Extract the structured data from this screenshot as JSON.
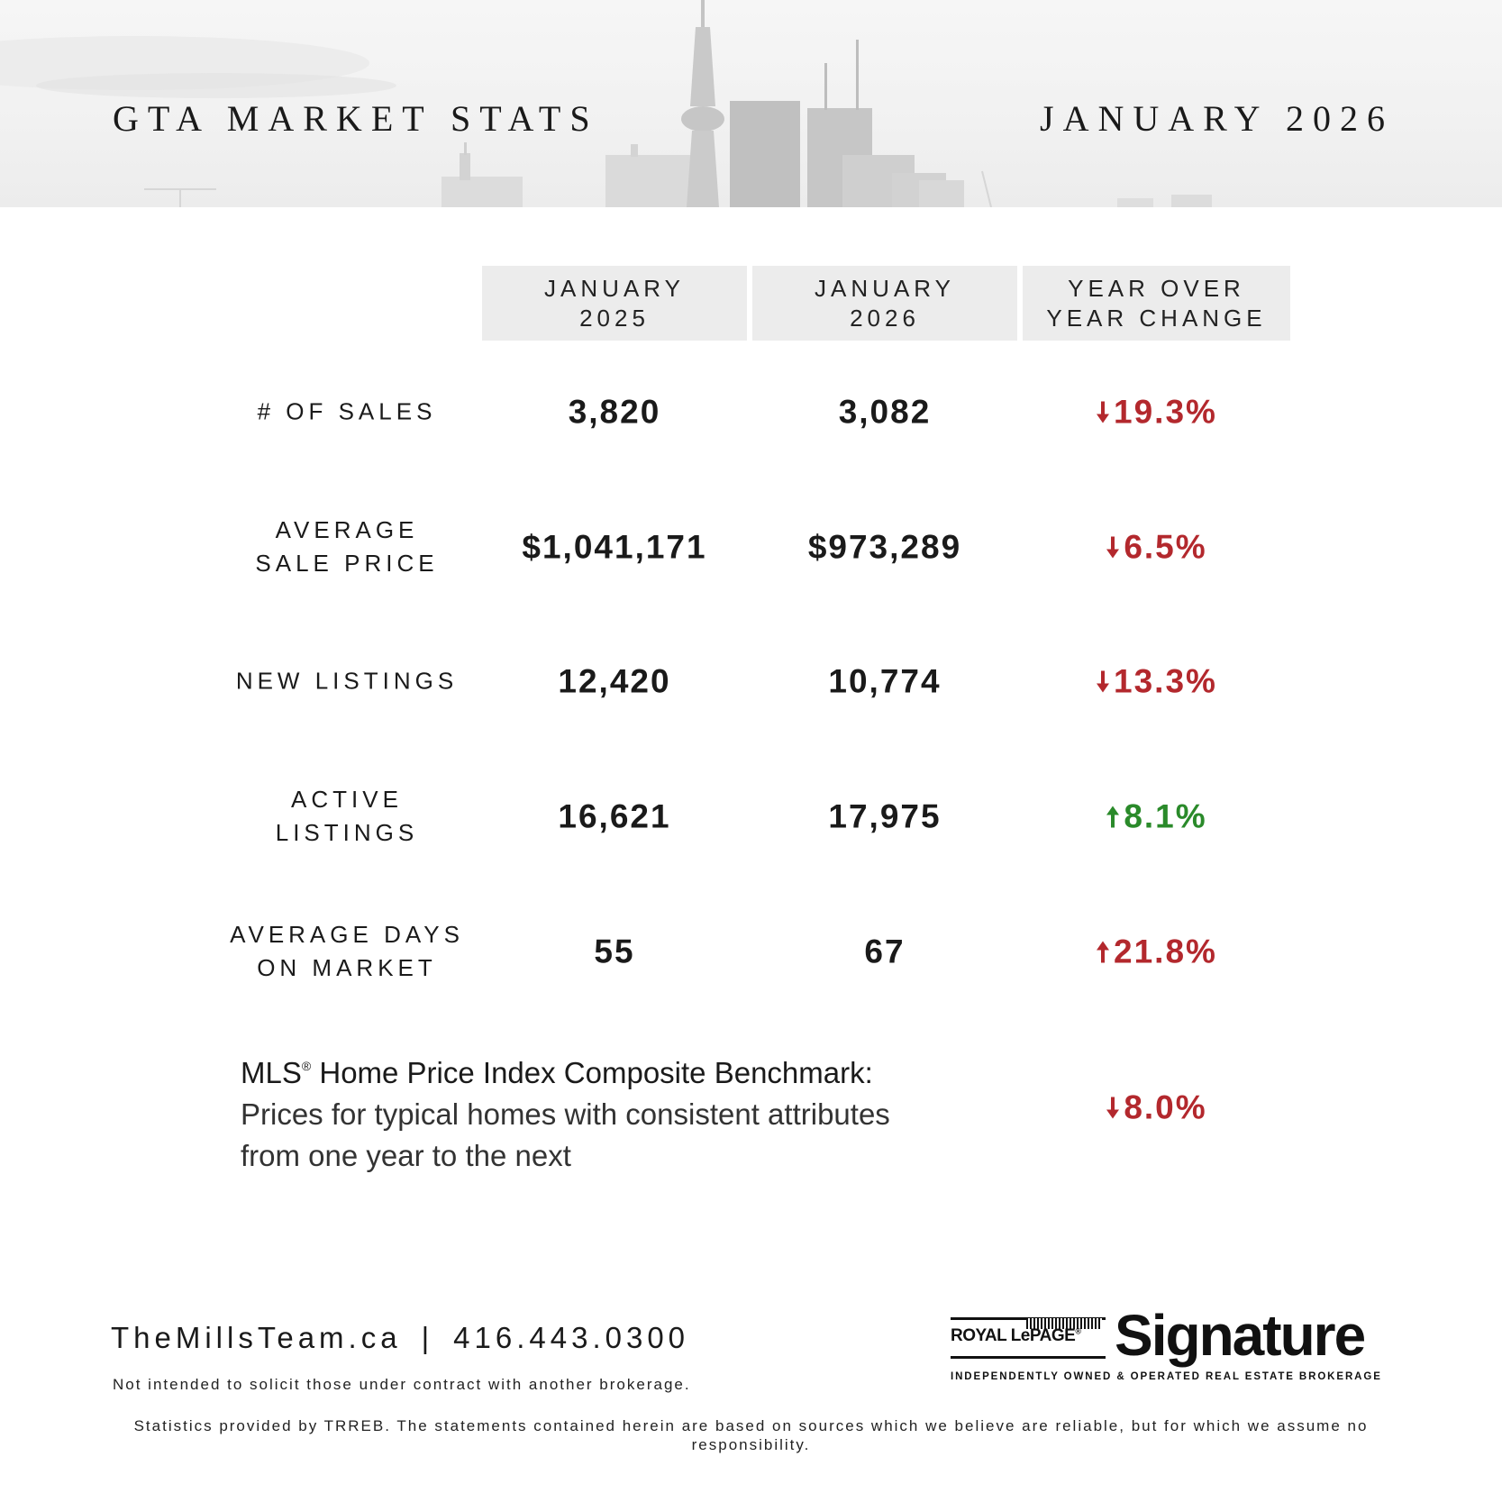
{
  "header": {
    "title": "GTA MARKET STATS",
    "period": "JANUARY 2026"
  },
  "columns": [
    {
      "line1": "JANUARY",
      "line2": "2025"
    },
    {
      "line1": "JANUARY",
      "line2": "2026"
    },
    {
      "line1": "YEAR OVER",
      "line2": "YEAR CHANGE"
    }
  ],
  "rows": [
    {
      "label_line1": "# OF SALES",
      "label_line2": "",
      "jan2025": "3,820",
      "jan2026": "3,082",
      "change": "19.3%",
      "direction": "down",
      "color": "#b3282d"
    },
    {
      "label_line1": "AVERAGE",
      "label_line2": "SALE PRICE",
      "jan2025": "$1,041,171",
      "jan2026": "$973,289",
      "change": "6.5%",
      "direction": "down",
      "color": "#b3282d"
    },
    {
      "label_line1": "NEW LISTINGS",
      "label_line2": "",
      "jan2025": "12,420",
      "jan2026": "10,774",
      "change": "13.3%",
      "direction": "down",
      "color": "#b3282d"
    },
    {
      "label_line1": "ACTIVE",
      "label_line2": "LISTINGS",
      "jan2025": "16,621",
      "jan2026": "17,975",
      "change": "8.1%",
      "direction": "up",
      "color": "#2a8a2a"
    },
    {
      "label_line1": "AVERAGE DAYS",
      "label_line2": "ON MARKET",
      "jan2025": "55",
      "jan2026": "67",
      "change": "21.8%",
      "direction": "up",
      "color": "#b3282d"
    }
  ],
  "hpi": {
    "title_prefix": "MLS",
    "title_mark": "®",
    "title_suffix": " Home Price Index Composite Benchmark:",
    "description_line1": "Prices for typical homes with consistent attributes",
    "description_line2": "from one year to the next",
    "change": "8.0%",
    "direction": "down",
    "color": "#b3282d"
  },
  "footer": {
    "website": "TheMillsTeam.ca",
    "separator": "|",
    "phone": "416.443.0300",
    "disclaimer1": "Not intended to solicit those under contract with another brokerage.",
    "disclaimer2": "Statistics provided by TRREB. The statements contained herein are based on sources which we believe are reliable, but for which we assume no responsibility."
  },
  "brand": {
    "royal_lepage": "ROYAL LePAGE",
    "registered": "®",
    "signature": "Signature",
    "tagline": "INDEPENDENTLY OWNED & OPERATED REAL ESTATE BROKERAGE"
  }
}
